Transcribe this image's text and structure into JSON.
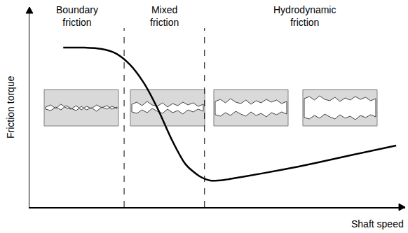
{
  "chart_data": {
    "type": "line",
    "xlabel": "Shaft speed",
    "ylabel": "Friction torque",
    "x": [
      9.0,
      14.6,
      19.2,
      22.9,
      26.7,
      30.4,
      34.1,
      37.9,
      41.6,
      45.3,
      48.1,
      51.9,
      57.5,
      66.8,
      76.1,
      85.4,
      97.6
    ],
    "values": [
      79.7,
      79.7,
      79.0,
      76.9,
      71.3,
      62.2,
      49.3,
      33.6,
      21.3,
      15.4,
      13.3,
      13.6,
      15.4,
      18.5,
      22.0,
      25.9,
      30.8
    ],
    "color": "#000000",
    "line_style": "solid",
    "xlim": [
      0,
      100
    ],
    "ylim": [
      0,
      100
    ],
    "xticks": [],
    "yticks": [],
    "tick_labels": false,
    "grid": false,
    "region_labels": [
      "Boundary friction",
      "Mixed friction",
      "Hydrodynamic friction"
    ],
    "dividers": [
      25.2,
      46.6
    ]
  }
}
